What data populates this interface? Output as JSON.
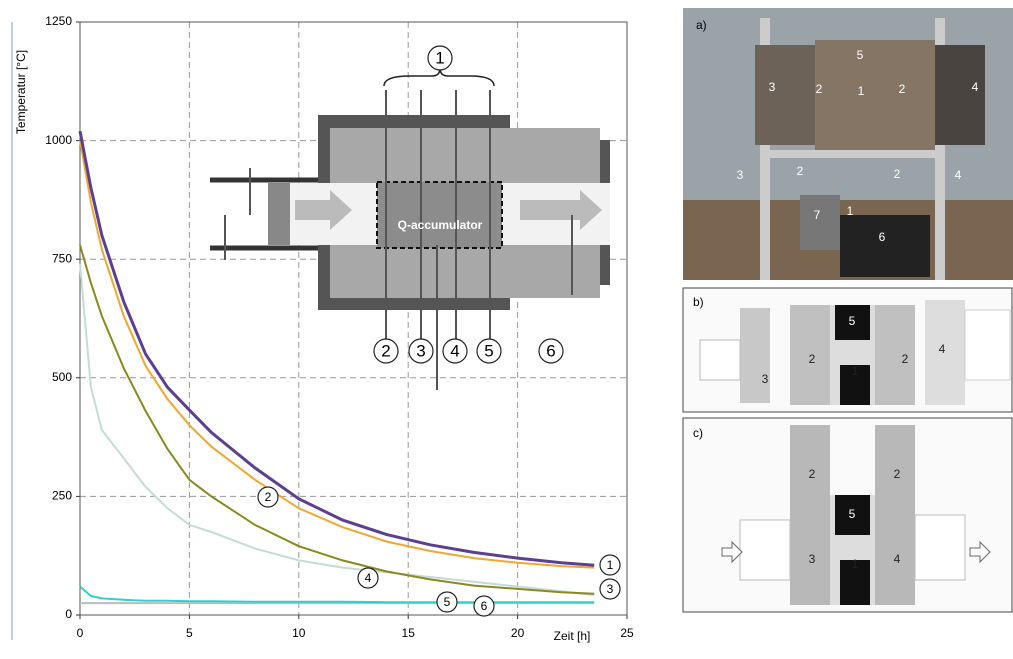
{
  "chart_data": {
    "type": "line",
    "x_label": "Zeit [h]",
    "y_label": "Temperatur [°C]",
    "x": [
      0,
      0.5,
      1,
      2,
      3,
      4,
      5,
      6,
      8,
      10,
      12,
      14,
      16,
      18,
      20,
      22,
      23.5
    ],
    "xlim": [
      0,
      25
    ],
    "xticks": [
      0,
      5,
      10,
      15,
      20,
      25
    ],
    "ylim": [
      0,
      1250
    ],
    "yticks": [
      0,
      250,
      500,
      750,
      1000,
      1250
    ],
    "grid": true,
    "series": [
      {
        "name": "1",
        "color": "#5b3f92",
        "values": [
          1020,
          900,
          800,
          660,
          550,
          480,
          432,
          385,
          310,
          245,
          200,
          170,
          148,
          132,
          120,
          110,
          105
        ]
      },
      {
        "name": "2",
        "color": "#f0a830",
        "values": [
          1000,
          870,
          770,
          630,
          525,
          455,
          400,
          355,
          285,
          225,
          185,
          155,
          135,
          120,
          110,
          103,
          100
        ]
      },
      {
        "name": "3",
        "color": "#8a8a20",
        "values": [
          780,
          700,
          630,
          520,
          430,
          350,
          285,
          250,
          190,
          145,
          115,
          92,
          75,
          62,
          55,
          48,
          45
        ]
      },
      {
        "name": "4",
        "color": "#c4dcd6",
        "values": [
          740,
          480,
          390,
          330,
          270,
          225,
          190,
          175,
          140,
          115,
          100,
          90,
          80,
          70,
          60,
          50,
          42
        ]
      },
      {
        "name": "5",
        "color": "#30d0d0",
        "values": [
          60,
          40,
          35,
          32,
          30,
          30,
          29,
          29,
          28,
          28,
          28,
          27,
          27,
          27,
          27,
          27,
          27
        ]
      },
      {
        "name": "6",
        "color": "#bdbdbd",
        "values": [
          25,
          25,
          25,
          25,
          25,
          25,
          25,
          25,
          25,
          25,
          25,
          25,
          25,
          25,
          25,
          25,
          25
        ]
      }
    ]
  },
  "inset": {
    "label": "Q-accumulator",
    "markers": [
      "1",
      "2",
      "3",
      "4",
      "5",
      "6"
    ]
  },
  "panels": [
    {
      "label": "a)",
      "numbers": [
        "3",
        "2",
        "5",
        "1",
        "2",
        "4",
        "3",
        "2",
        "2",
        "4",
        "7",
        "1",
        "6"
      ]
    },
    {
      "label": "b)",
      "numbers": [
        "3",
        "2",
        "5",
        "1",
        "2",
        "4"
      ]
    },
    {
      "label": "c)",
      "numbers": [
        "2",
        "2",
        "5",
        "3",
        "1",
        "4"
      ]
    }
  ]
}
